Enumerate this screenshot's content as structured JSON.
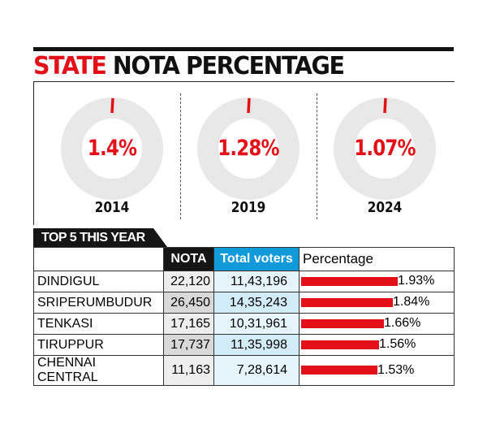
{
  "title": {
    "part1": "STATE",
    "part2": "NOTA PERCENTAGE"
  },
  "colors": {
    "accent": "#e3101a",
    "ring": "#e8e8e8",
    "blue": "#109ad9"
  },
  "chart_data": [
    {
      "type": "pie",
      "title": "STATE NOTA PERCENTAGE",
      "categories": [
        "2014",
        "2019",
        "2024"
      ],
      "values": [
        1.4,
        1.28,
        1.07
      ],
      "labels": [
        "1.4%",
        "1.28%",
        "1.07%"
      ]
    },
    {
      "type": "table",
      "title": "TOP 5 THIS YEAR",
      "columns": [
        "",
        "NOTA",
        "Total voters",
        "Percentage"
      ],
      "rows": [
        {
          "name": "DINDIGUL",
          "nota": "22,120",
          "total": "11,43,196",
          "pct": 1.93,
          "pct_label": "1.93%"
        },
        {
          "name": "SRIPERUMBUDUR",
          "nota": "26,450",
          "total": "14,35,243",
          "pct": 1.84,
          "pct_label": "1.84%"
        },
        {
          "name": "TENKASI",
          "nota": "17,165",
          "total": "10,31,961",
          "pct": 1.66,
          "pct_label": "1.66%"
        },
        {
          "name": "TIRUPPUR",
          "nota": "17,737",
          "total": "11,35,998",
          "pct": 1.56,
          "pct_label": "1.56%"
        },
        {
          "name": "CHENNAI CENTRAL",
          "nota": "11,163",
          "total": "7,28,614",
          "pct": 1.53,
          "pct_label": "1.53%"
        }
      ]
    }
  ]
}
